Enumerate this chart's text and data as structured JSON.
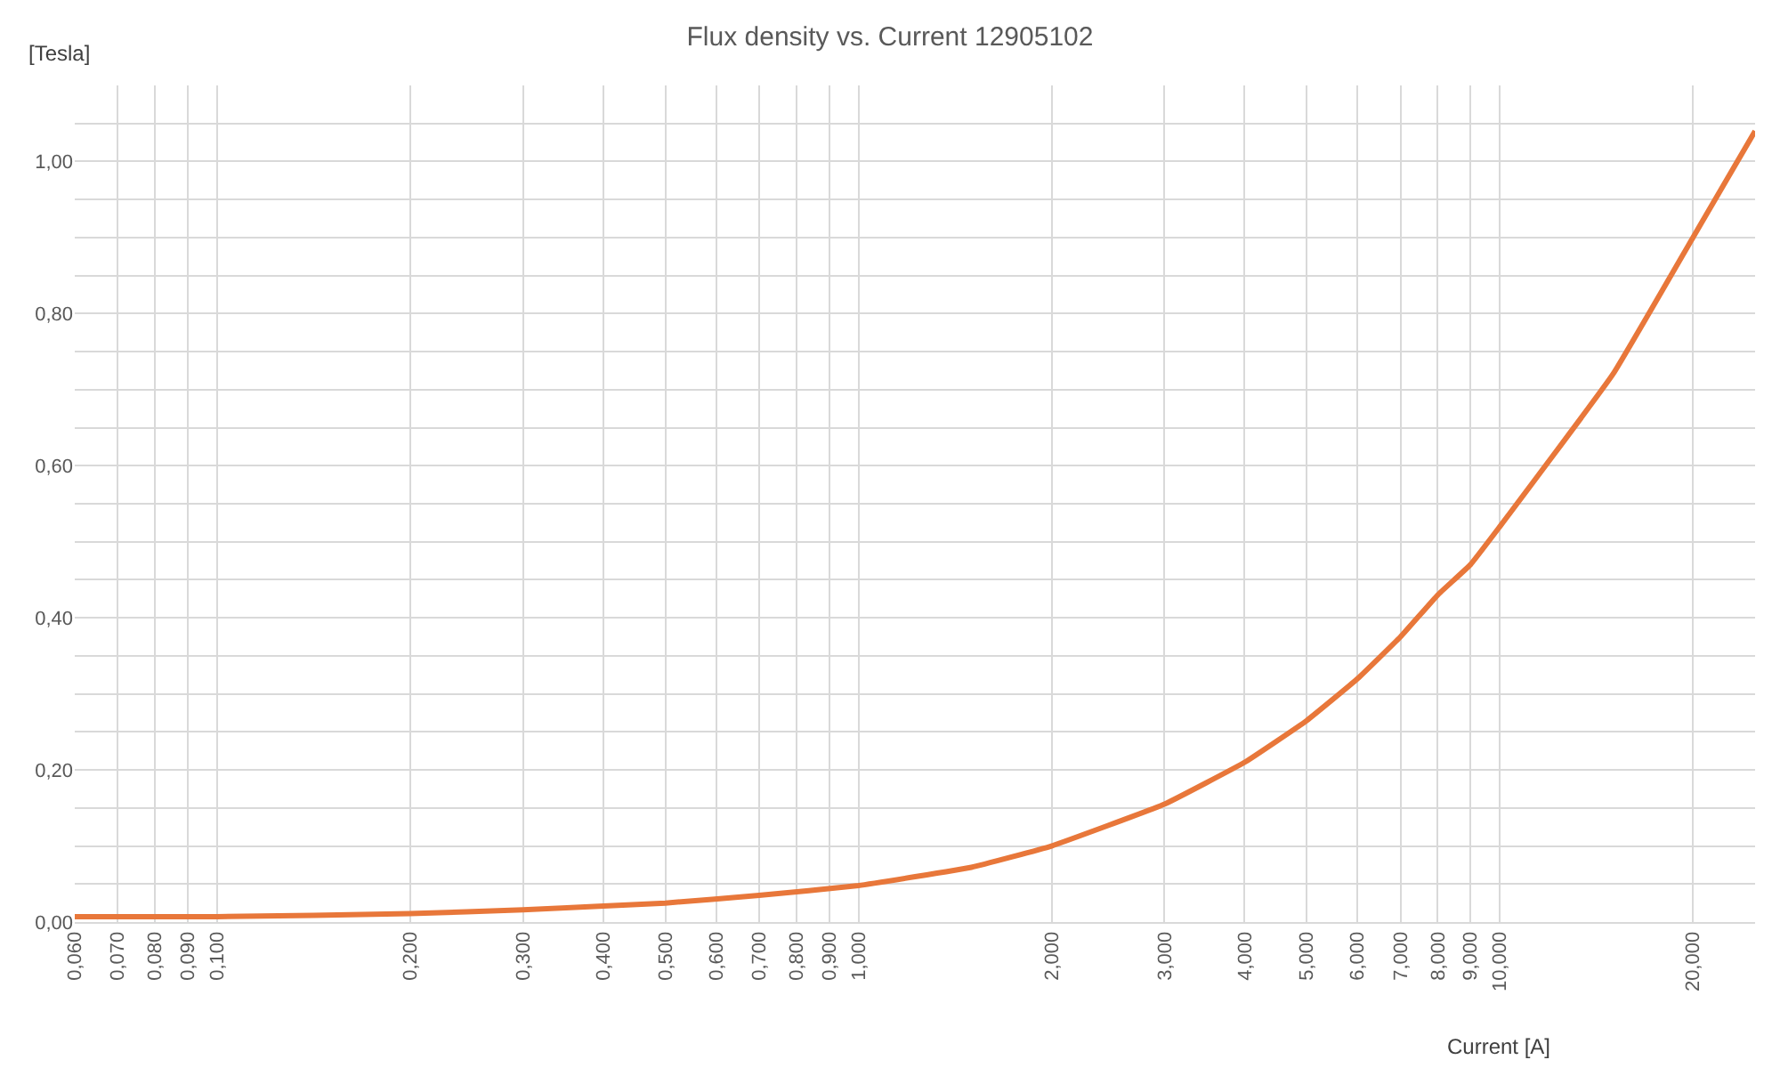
{
  "chart_data": {
    "type": "line",
    "title": "Flux density vs. Current 12905102",
    "xlabel": "Current [A]",
    "ylabel": "[Tesla]",
    "log": "x",
    "grid": true,
    "marker": "none",
    "line_style": "solid",
    "x": [
      0.06,
      0.1,
      0.2,
      0.3,
      0.5,
      0.7,
      1.0,
      1.5,
      2,
      3,
      4,
      5,
      6,
      7,
      8,
      9,
      10,
      15,
      20,
      25
    ],
    "series": [
      {
        "color": "#e8773a",
        "values": [
          0.007,
          0.007,
          0.011,
          0.016,
          0.025,
          0.035,
          0.048,
          0.072,
          0.1,
          0.155,
          0.21,
          0.265,
          0.32,
          0.375,
          0.43,
          0.47,
          0.52,
          0.72,
          0.9,
          1.04
        ]
      }
    ],
    "xlim": [
      0.06,
      25
    ],
    "xticks": [
      {
        "value": 0.06,
        "label": "0,060"
      },
      {
        "value": 0.07,
        "label": "0,070"
      },
      {
        "value": 0.08,
        "label": "0,080"
      },
      {
        "value": 0.09,
        "label": "0,090"
      },
      {
        "value": 0.1,
        "label": "0,100"
      },
      {
        "value": 0.2,
        "label": "0,200"
      },
      {
        "value": 0.3,
        "label": "0,300"
      },
      {
        "value": 0.4,
        "label": "0,400"
      },
      {
        "value": 0.5,
        "label": "0,500"
      },
      {
        "value": 0.6,
        "label": "0,600"
      },
      {
        "value": 0.7,
        "label": "0,700"
      },
      {
        "value": 0.8,
        "label": "0,800"
      },
      {
        "value": 0.9,
        "label": "0,900"
      },
      {
        "value": 1,
        "label": "1,000"
      },
      {
        "value": 2,
        "label": "2,000"
      },
      {
        "value": 3,
        "label": "3,000"
      },
      {
        "value": 4,
        "label": "4,000"
      },
      {
        "value": 5,
        "label": "5,000"
      },
      {
        "value": 6,
        "label": "6,000"
      },
      {
        "value": 7,
        "label": "7,000"
      },
      {
        "value": 8,
        "label": "8,000"
      },
      {
        "value": 9,
        "label": "9,000"
      },
      {
        "value": 10,
        "label": "10,000"
      },
      {
        "value": 20,
        "label": "20,000"
      }
    ],
    "ylim": [
      0,
      1.1
    ],
    "yticks": [
      {
        "value": 0,
        "label": "0,00"
      },
      {
        "value": 0.05,
        "label": null
      },
      {
        "value": 0.1,
        "label": null
      },
      {
        "value": 0.15,
        "label": null
      },
      {
        "value": 0.2,
        "label": "0,20"
      },
      {
        "value": 0.25,
        "label": null
      },
      {
        "value": 0.3,
        "label": null
      },
      {
        "value": 0.35,
        "label": null
      },
      {
        "value": 0.4,
        "label": "0,40"
      },
      {
        "value": 0.45,
        "label": null
      },
      {
        "value": 0.5,
        "label": null
      },
      {
        "value": 0.55,
        "label": null
      },
      {
        "value": 0.6,
        "label": "0,60"
      },
      {
        "value": 0.65,
        "label": null
      },
      {
        "value": 0.7,
        "label": null
      },
      {
        "value": 0.75,
        "label": null
      },
      {
        "value": 0.8,
        "label": "0,80"
      },
      {
        "value": 0.85,
        "label": null
      },
      {
        "value": 0.9,
        "label": null
      },
      {
        "value": 0.95,
        "label": null
      },
      {
        "value": 1.0,
        "label": "1,00"
      },
      {
        "value": 1.05,
        "label": null
      }
    ]
  }
}
